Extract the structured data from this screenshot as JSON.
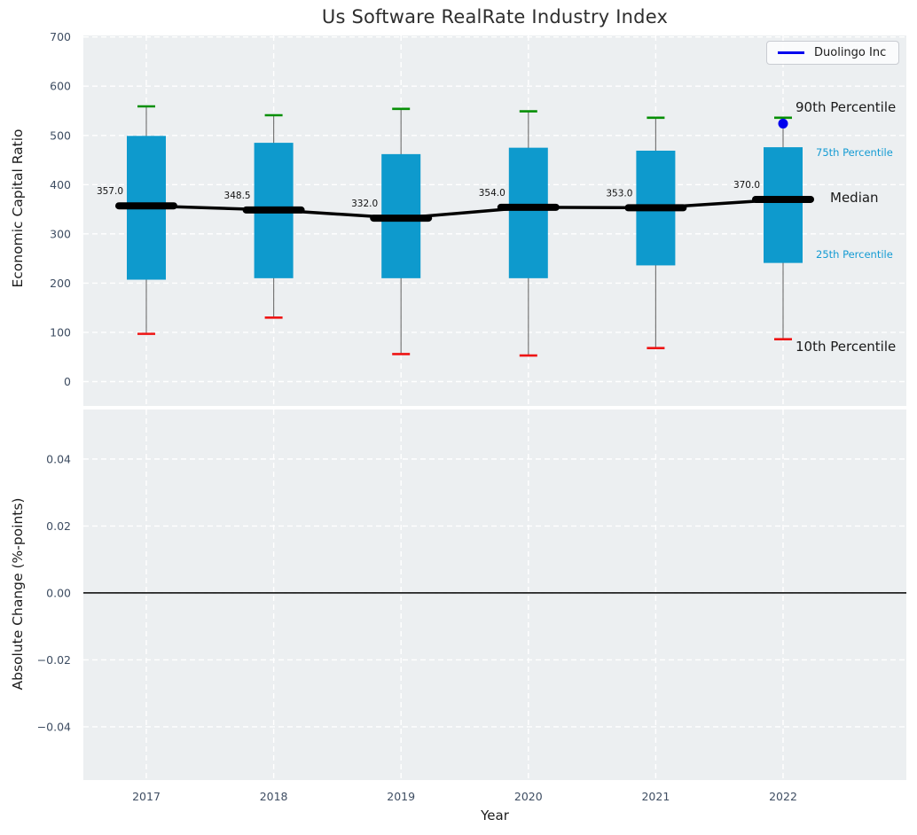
{
  "figure": {
    "title": "Us Software RealRate Industry Index",
    "background_color": "#ffffff",
    "axes_background_color": "#eceff1",
    "grid_color": "#ffffff",
    "tick_label_color": "#3e4d62"
  },
  "legend": {
    "label": "Duolingo Inc",
    "line_color": "#0000ee",
    "position": "upper right"
  },
  "chart_data": [
    {
      "type": "boxplot",
      "title": "Us Software RealRate Industry Index",
      "xlabel": "Year",
      "ylabel": "Economic Capital Ratio",
      "categories": [
        "2017",
        "2018",
        "2019",
        "2020",
        "2021",
        "2022"
      ],
      "ylim": [
        -49.5,
        703
      ],
      "yticks": [
        0,
        100,
        200,
        300,
        400,
        500,
        600,
        700
      ],
      "grid": "white dashed, horizontal and vertical",
      "percentiles": {
        "p90": [
          559,
          541,
          554,
          549,
          536,
          536
        ],
        "p75": [
          499,
          485,
          462,
          475,
          469,
          476
        ],
        "median": [
          357.0,
          348.5,
          332.0,
          354.0,
          353.0,
          370.0
        ],
        "p25": [
          207,
          210,
          210,
          210,
          236,
          241
        ],
        "p10": [
          97,
          130,
          56,
          53,
          68,
          86
        ]
      },
      "median_labels": [
        "357.0",
        "348.5",
        "332.0",
        "354.0",
        "353.0",
        "370.0"
      ],
      "overlay_series": {
        "name": "Duolingo Inc",
        "color": "#0000ee",
        "points": [
          {
            "x": "2022",
            "y": 524
          }
        ]
      },
      "annotations": {
        "p90": {
          "text": "90th Percentile",
          "color": "#1a1a1a"
        },
        "p75": {
          "text": "75th Percentile",
          "color": "#149bd3"
        },
        "median": {
          "text": "Median",
          "color": "#1a1a1a"
        },
        "p25": {
          "text": "25th Percentile",
          "color": "#149bd3"
        },
        "p10": {
          "text": "10th Percentile",
          "color": "#1a1a1a"
        }
      },
      "colors": {
        "box": "#0e9acd",
        "median_line": "#000000",
        "cap_top": "#068f06",
        "cap_bottom": "#ee1414",
        "whisker": "#777777"
      }
    },
    {
      "type": "line",
      "xlabel": "Year",
      "ylabel": "Absolute Change (%-points)",
      "categories": [
        "2017",
        "2018",
        "2019",
        "2020",
        "2021",
        "2022"
      ],
      "ylim": [
        -0.0559,
        0.0548
      ],
      "yticks": [
        0.04,
        0.02,
        0.0,
        -0.02,
        -0.04
      ],
      "ytick_labels": [
        "0.04",
        "0.02",
        "0.00",
        "−0.02",
        "−0.04"
      ],
      "zero_line": true,
      "series": []
    }
  ]
}
